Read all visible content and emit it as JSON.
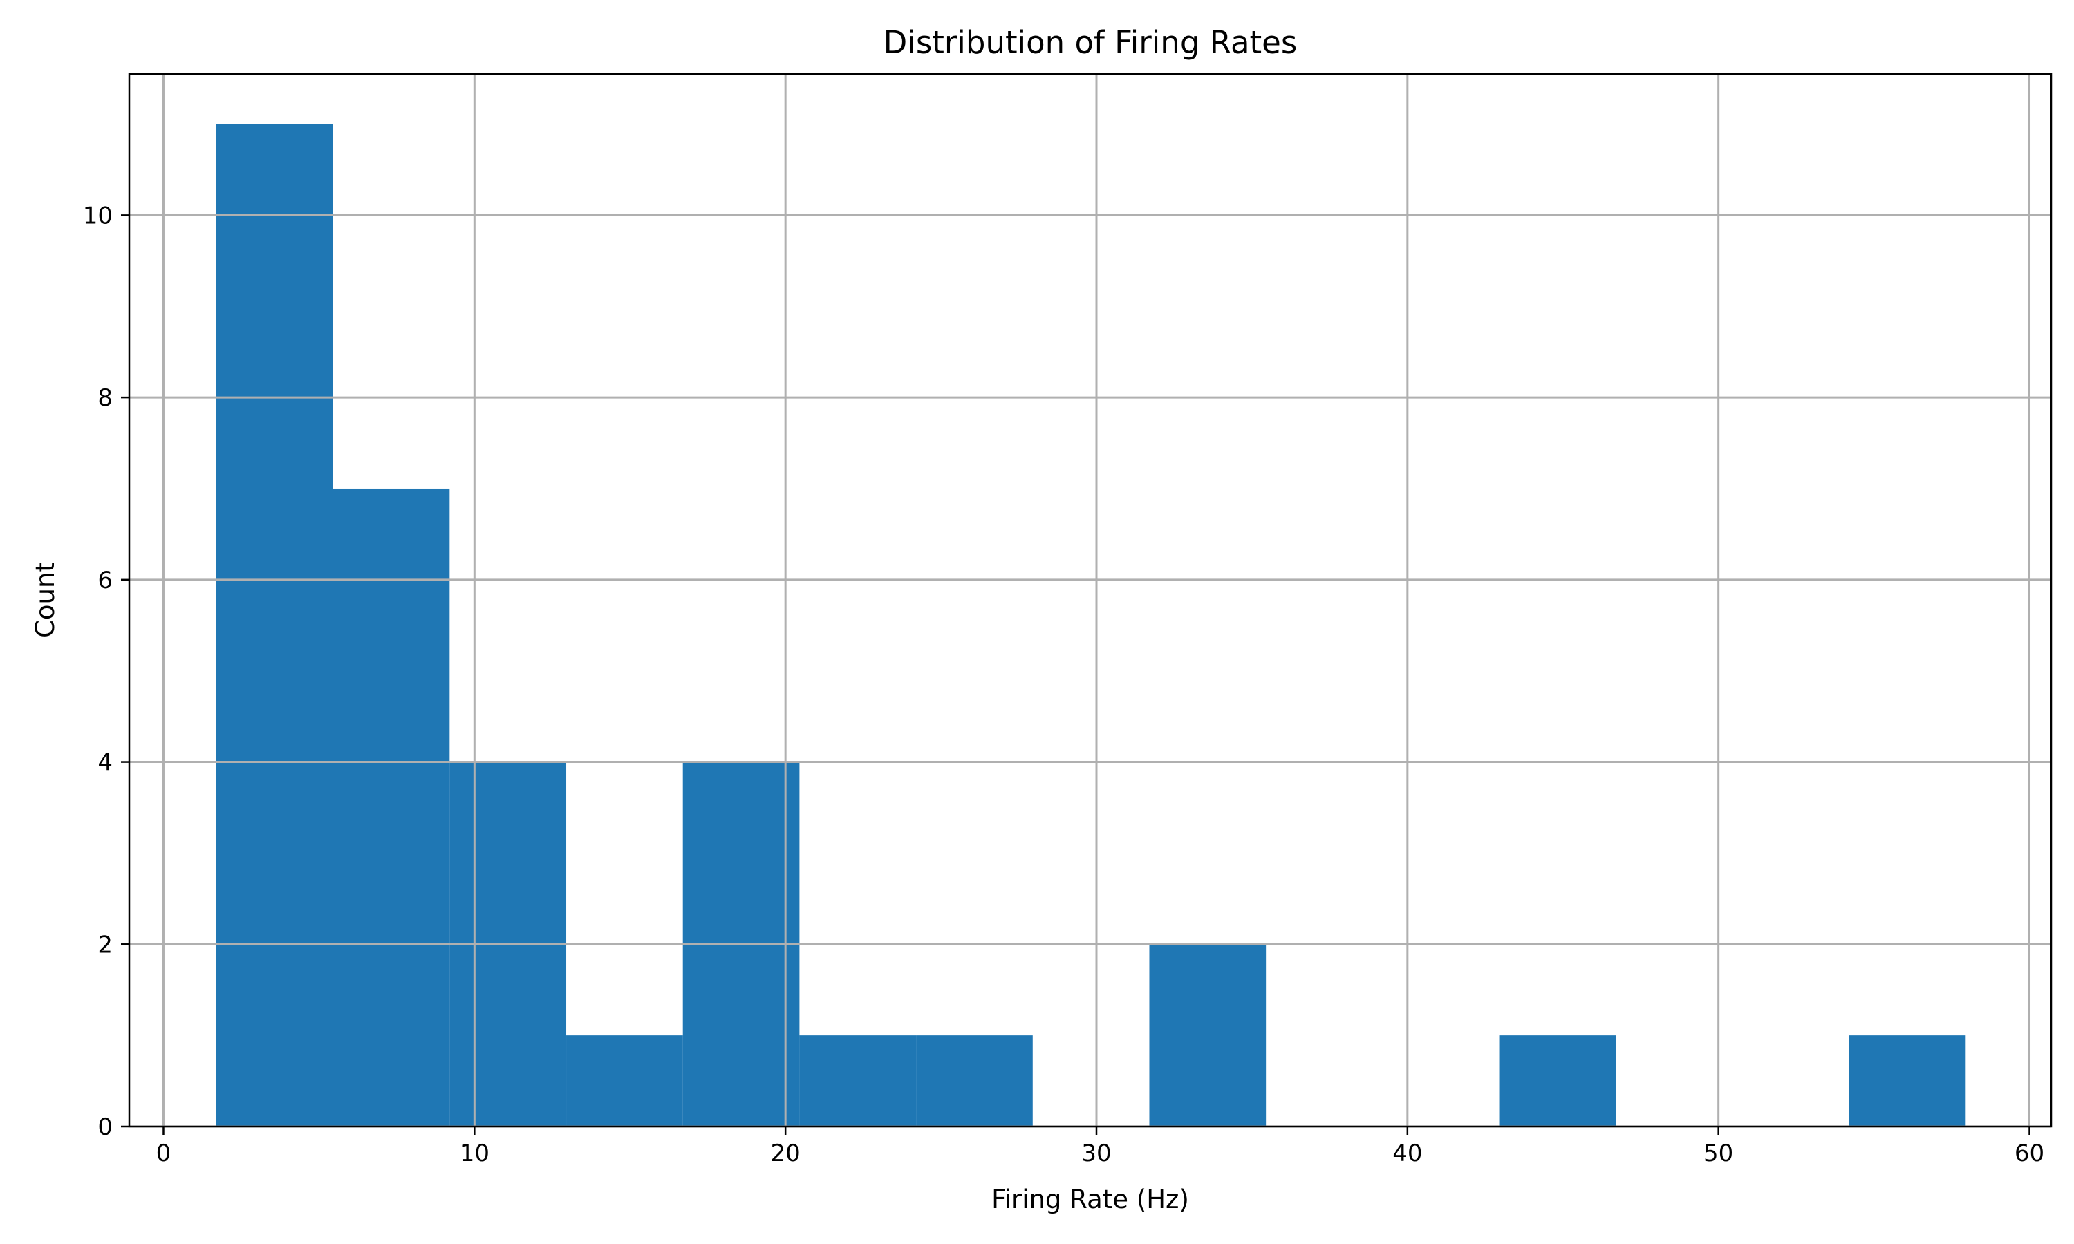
{
  "chart_data": {
    "type": "bar",
    "title": "Distribution of Firing Rates",
    "xlabel": "Firing Rate (Hz)",
    "ylabel": "Count",
    "xlim": [
      -1.1,
      60.7
    ],
    "ylim": [
      0,
      11.55
    ],
    "grid": true,
    "bar_color": "#1f77b4",
    "xticks": [
      0,
      10,
      20,
      30,
      40,
      50,
      60
    ],
    "yticks": [
      0,
      2,
      4,
      6,
      8,
      10
    ],
    "bins": [
      {
        "x0": 1.7,
        "x1": 5.45,
        "count": 11
      },
      {
        "x0": 5.45,
        "x1": 9.2,
        "count": 7
      },
      {
        "x0": 9.2,
        "x1": 12.95,
        "count": 4
      },
      {
        "x0": 12.95,
        "x1": 16.7,
        "count": 1
      },
      {
        "x0": 16.7,
        "x1": 20.45,
        "count": 4
      },
      {
        "x0": 20.45,
        "x1": 24.2,
        "count": 1
      },
      {
        "x0": 24.2,
        "x1": 27.95,
        "count": 1
      },
      {
        "x0": 27.95,
        "x1": 31.7,
        "count": 0
      },
      {
        "x0": 31.7,
        "x1": 35.45,
        "count": 2
      },
      {
        "x0": 35.45,
        "x1": 39.2,
        "count": 0
      },
      {
        "x0": 39.2,
        "x1": 42.95,
        "count": 0
      },
      {
        "x0": 42.95,
        "x1": 46.7,
        "count": 1
      },
      {
        "x0": 46.7,
        "x1": 50.45,
        "count": 0
      },
      {
        "x0": 50.45,
        "x1": 54.2,
        "count": 0
      },
      {
        "x0": 54.2,
        "x1": 57.95,
        "count": 1
      }
    ]
  }
}
